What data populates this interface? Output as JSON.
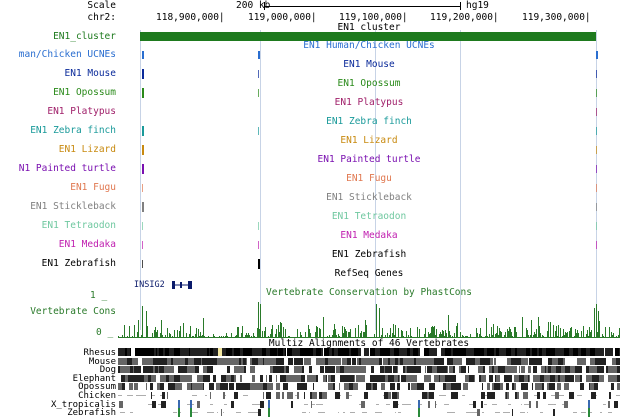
{
  "ruler": {
    "scale_label": "Scale",
    "scale_bar": "200 kb",
    "assembly": "hg19",
    "chrom": "chr2:",
    "positions": [
      "118,900,000|",
      "119,000,000|",
      "119,100,000|",
      "119,200,000|",
      "119,300,000|"
    ]
  },
  "cluster": {
    "label": "EN1_cluster",
    "title": "EN1_cluster",
    "color": "#1e7a1e"
  },
  "tracks": [
    {
      "label": "man/Chicken UCNEs",
      "title": "EN1 Human/Chicken UCNEs",
      "color": "#2a6ed0"
    },
    {
      "label": "EN1 Mouse",
      "title": "EN1 Mouse",
      "color": "#0a2a9a"
    },
    {
      "label": "EN1 Opossum",
      "title": "EN1 Opossum",
      "color": "#2a8a1a"
    },
    {
      "label": "EN1 Platypus",
      "title": "EN1 Platypus",
      "color": "#a0206a"
    },
    {
      "label": "EN1 Zebra finch",
      "title": "EN1 Zebra finch",
      "color": "#1a9a9a"
    },
    {
      "label": "EN1 Lizard",
      "title": "EN1 Lizard",
      "color": "#c88a10"
    },
    {
      "label": "N1 Painted turtle",
      "title": "EN1 Painted turtle",
      "color": "#7a10b0"
    },
    {
      "label": "EN1 Fugu",
      "title": "EN1 Fugu",
      "color": "#e07850"
    },
    {
      "label": "EN1 Stickleback",
      "title": "EN1 Stickleback",
      "color": "#808080"
    },
    {
      "label": "EN1 Tetraodon",
      "title": "EN1 Tetraodon",
      "color": "#70c8a0"
    },
    {
      "label": "EN1 Medaka",
      "title": "EN1 Medaka",
      "color": "#c020b0"
    },
    {
      "label": "EN1 Zebrafish",
      "title": "EN1 Zebrafish",
      "color": "#000000"
    }
  ],
  "refseq": {
    "title": "RefSeq Genes",
    "gene": "INSIG2"
  },
  "conservation": {
    "title": "Vertebrate Conservation by PhastCons",
    "label": "Vertebrate Cons",
    "max_label": "1 _",
    "min_label": "0 _",
    "color": "#2a7a2a"
  },
  "multiz": {
    "title": "Multiz Alignments of 46 Vertebrates",
    "species": [
      "Rhesus",
      "Mouse",
      "Dog",
      "Elephant",
      "Opossum",
      "Chicken",
      "X_tropicalis",
      "Zebrafish"
    ]
  }
}
